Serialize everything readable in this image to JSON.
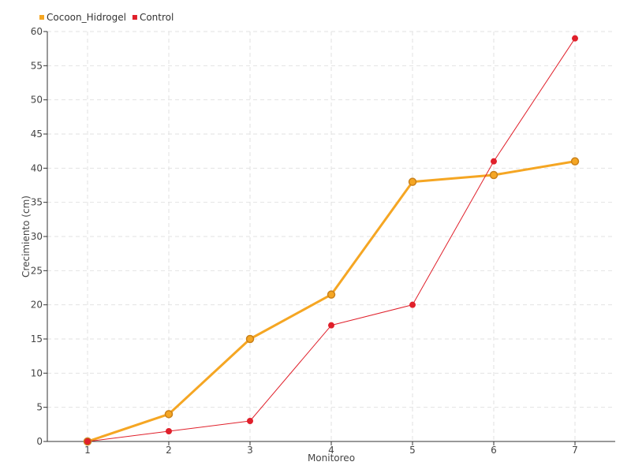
{
  "chart_data": {
    "type": "line",
    "categories": [
      "1",
      "2",
      "3",
      "4",
      "5",
      "6",
      "7"
    ],
    "series": [
      {
        "name": "Cocoon_Hidrogel",
        "values": [
          0,
          4,
          15,
          21.5,
          38,
          39,
          41
        ],
        "color": "#f5a623",
        "marker_stroke": "#c9801a",
        "line_width": 3,
        "marker_size": "large"
      },
      {
        "name": "Control",
        "values": [
          0,
          1.5,
          3,
          17,
          20,
          41,
          59
        ],
        "color": "#e0202b",
        "marker_stroke": "#e0202b",
        "line_width": 1,
        "marker_size": "small"
      }
    ],
    "xlabel": "Monitoreo",
    "ylabel": "Crecimiento (cm)",
    "ylim": [
      0,
      60
    ],
    "yticks": [
      0,
      5,
      10,
      15,
      20,
      25,
      30,
      35,
      40,
      45,
      50,
      55,
      60
    ],
    "grid": true,
    "legend_position": "top-left"
  }
}
